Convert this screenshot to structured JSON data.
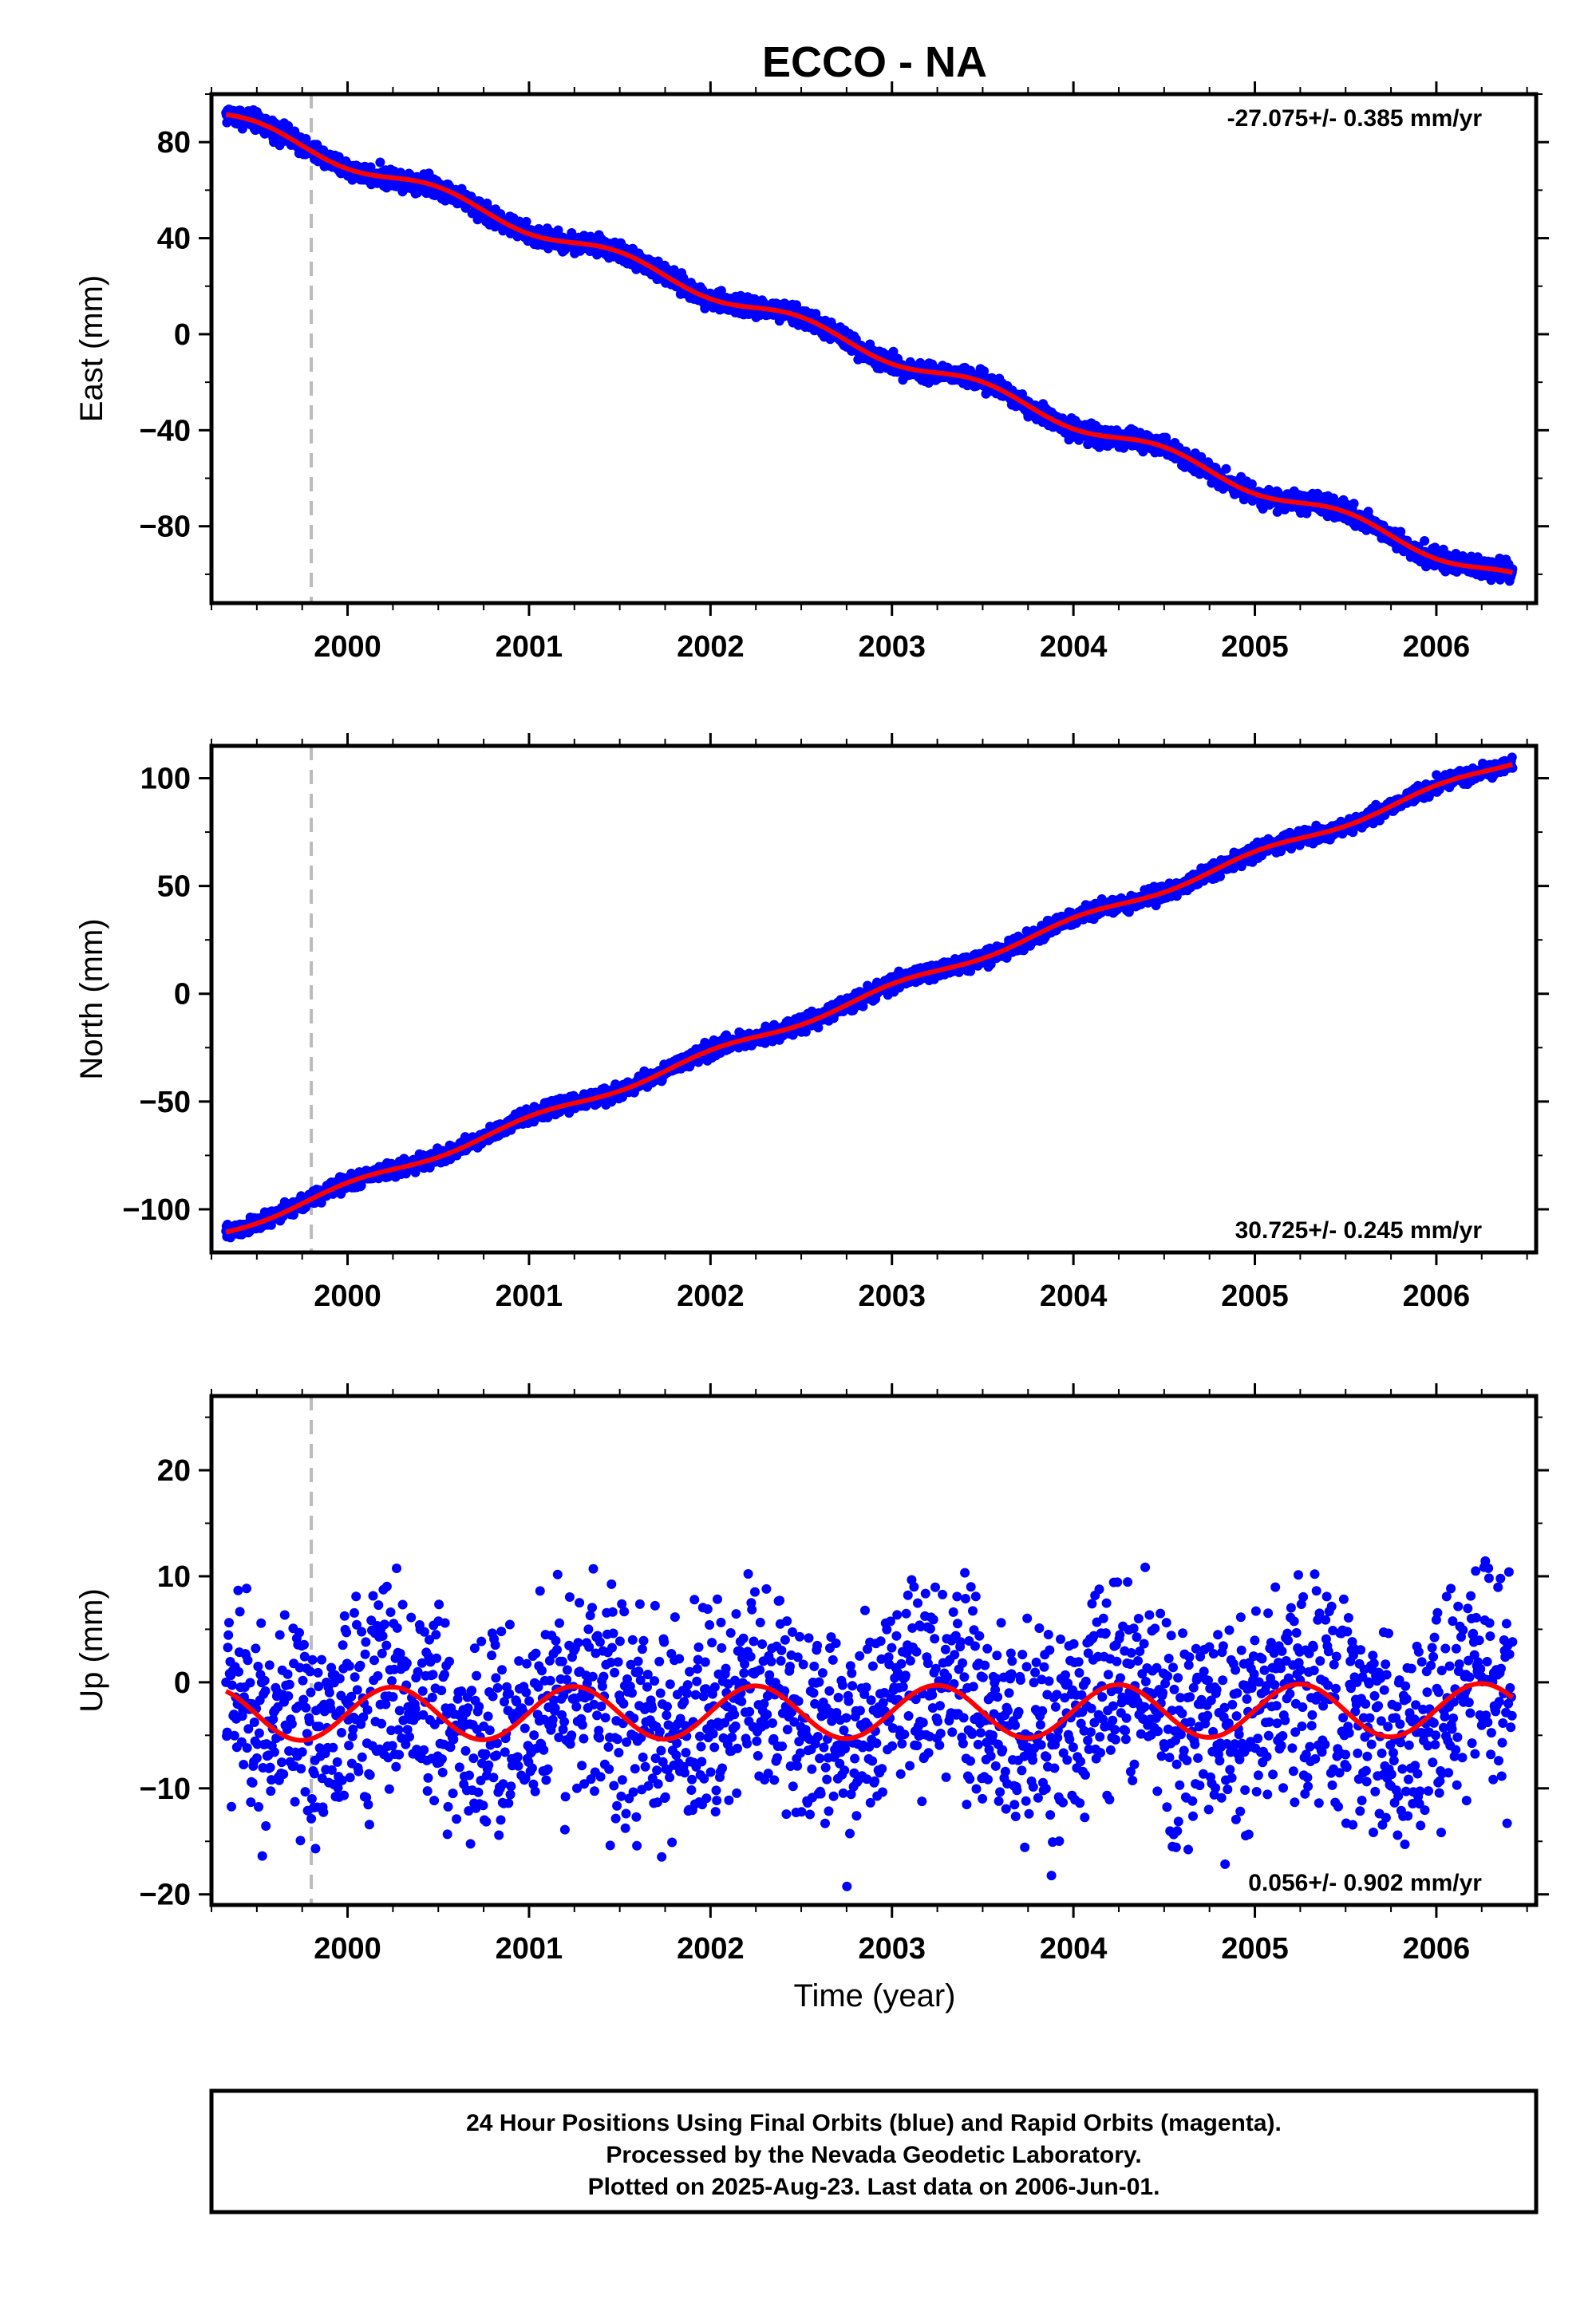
{
  "chart_data": {
    "type": "scatter",
    "title": "ECCO - NA",
    "xlabel": "Time (year)",
    "xlim": [
      1999.25,
      2006.55
    ],
    "x_ticks": [
      "2000",
      "2001",
      "2002",
      "2003",
      "2004",
      "2005",
      "2006"
    ],
    "reference_line_x": 1999.8,
    "colors": {
      "points": "#0000ff",
      "fit": "#ff0000",
      "reference_line": "#bbbbbb",
      "frame": "#000000"
    },
    "panels": [
      {
        "ylabel": "East (mm)",
        "ylim": [
          -112,
          100
        ],
        "y_ticks": [
          80,
          40,
          0,
          -40,
          -80
        ],
        "y_tick_labels": [
          "80",
          "40",
          "0",
          "−40",
          "−80"
        ],
        "rate_text": "-27.075+/- 0.385 mm/yr",
        "rate_position": "top-right",
        "fit": {
          "start_x": 1999.33,
          "start_y": 90,
          "slope": -27.075,
          "annual_amp": 3.0,
          "annual_phase_deg": 30
        },
        "scatter": {
          "noise": 2.0,
          "density_per_year": 365
        }
      },
      {
        "ylabel": "North (mm)",
        "ylim": [
          -120,
          115
        ],
        "y_ticks": [
          100,
          50,
          0,
          -50,
          -100
        ],
        "y_tick_labels": [
          "100",
          "50",
          "0",
          "−50",
          "−100"
        ],
        "rate_text": "30.725+/- 0.245 mm/yr",
        "rate_position": "bottom-right",
        "fit": {
          "start_x": 1999.33,
          "start_y": -110,
          "slope": 30.725,
          "annual_amp": 1.8,
          "annual_phase_deg": 200
        },
        "scatter": {
          "noise": 1.8,
          "density_per_year": 365
        }
      },
      {
        "ylabel": "Up (mm)",
        "ylim": [
          -21,
          27
        ],
        "y_ticks": [
          20,
          10,
          0,
          -10,
          -20
        ],
        "y_tick_labels": [
          "20",
          "10",
          "0",
          "−10",
          "−20"
        ],
        "rate_text": "0.056+/- 0.902 mm/yr",
        "rate_position": "bottom-right",
        "fit": {
          "start_x": 1999.33,
          "start_y": -3.0,
          "slope": 0.056,
          "annual_amp": 2.5,
          "annual_phase_deg": 120
        },
        "scatter": {
          "noise": 5.0,
          "density_per_year": 300
        }
      }
    ]
  },
  "footer": {
    "line1": "24 Hour Positions Using Final Orbits (blue) and Rapid Orbits (magenta).",
    "line2": "Processed by the Nevada Geodetic Laboratory.",
    "line3": "Plotted on 2025-Aug-23. Last data on 2006-Jun-01."
  }
}
